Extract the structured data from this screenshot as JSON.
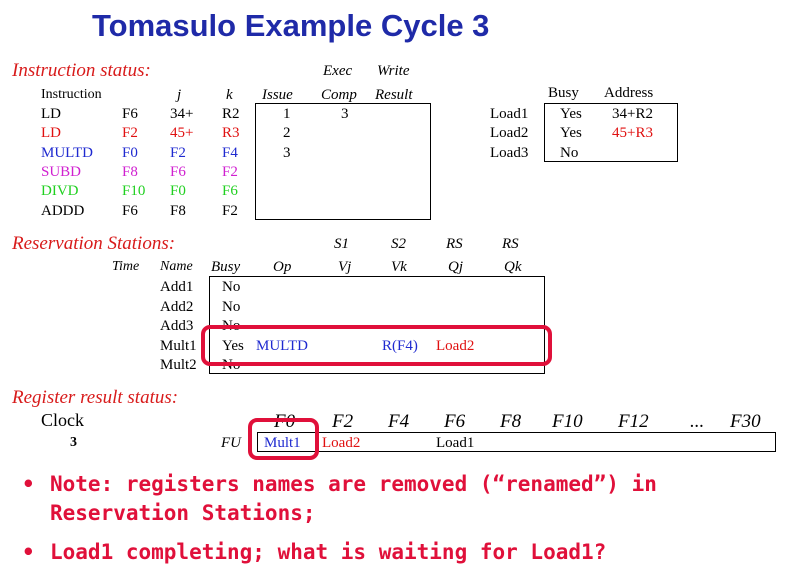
{
  "title": "Tomasulo Example Cycle 3",
  "instruction_status": {
    "label": "Instruction status:",
    "headers": {
      "instruction": "Instruction",
      "j": "j",
      "k": "k",
      "issue": "Issue",
      "exec_top": "Exec",
      "exec_bottom": "Comp",
      "write_top": "Write",
      "write_bottom": "Result"
    },
    "rows": [
      {
        "op": "LD",
        "dest": "F6",
        "j": "34+",
        "k": "R2",
        "issue": "1",
        "exec": "3",
        "write": "",
        "color": "#000000"
      },
      {
        "op": "LD",
        "dest": "F2",
        "j": "45+",
        "k": "R3",
        "issue": "2",
        "exec": "",
        "write": "",
        "color": "#e01010"
      },
      {
        "op": "MULTD",
        "dest": "F0",
        "j": "F2",
        "k": "F4",
        "issue": "3",
        "exec": "",
        "write": "",
        "color": "#1f2ad0"
      },
      {
        "op": "SUBD",
        "dest": "F8",
        "j": "F6",
        "k": "F2",
        "issue": "",
        "exec": "",
        "write": "",
        "color": "#d020d0"
      },
      {
        "op": "DIVD",
        "dest": "F10",
        "j": "F0",
        "k": "F6",
        "issue": "",
        "exec": "",
        "write": "",
        "color": "#20d020"
      },
      {
        "op": "ADDD",
        "dest": "F6",
        "j": "F8",
        "k": "F2",
        "issue": "",
        "exec": "",
        "write": "",
        "color": "#000000"
      }
    ]
  },
  "load_buffers": {
    "headers": {
      "busy": "Busy",
      "address": "Address"
    },
    "rows": [
      {
        "name": "Load1",
        "busy": "Yes",
        "address": "34+R2",
        "color": "#000000"
      },
      {
        "name": "Load2",
        "busy": "Yes",
        "address": "45+R3",
        "color": "#e01010"
      },
      {
        "name": "Load3",
        "busy": "No",
        "address": "",
        "color": "#000000"
      }
    ]
  },
  "reservation_stations": {
    "label": "Reservation Stations:",
    "headers": {
      "time": "Time",
      "name": "Name",
      "busy": "Busy",
      "op": "Op",
      "s1": "S1",
      "vj": "Vj",
      "s2": "S2",
      "vk": "Vk",
      "rs1": "RS",
      "qj": "Qj",
      "rs2": "RS",
      "qk": "Qk"
    },
    "rows": [
      {
        "name": "Add1",
        "busy": "No",
        "op": "",
        "vj": "",
        "vk": "",
        "qj": "",
        "qk": ""
      },
      {
        "name": "Add2",
        "busy": "No",
        "op": "",
        "vj": "",
        "vk": "",
        "qj": "",
        "qk": ""
      },
      {
        "name": "Add3",
        "busy": "No",
        "op": "",
        "vj": "",
        "vk": "",
        "qj": "",
        "qk": ""
      },
      {
        "name": "Mult1",
        "busy": "Yes",
        "op": "MULTD",
        "vj": "",
        "vk": "R(F4)",
        "qj": "Load2",
        "qk": ""
      },
      {
        "name": "Mult2",
        "busy": "No",
        "op": "",
        "vj": "",
        "vk": "",
        "qj": "",
        "qk": ""
      }
    ]
  },
  "register_status": {
    "label": "Register result status:",
    "clock_label": "Clock",
    "clock_value": "3",
    "fu_label": "FU",
    "registers": [
      "F0",
      "F2",
      "F4",
      "F6",
      "F8",
      "F10",
      "F12",
      "...",
      "F30"
    ],
    "values": [
      "Mult1",
      "Load2",
      "",
      "Load1",
      "",
      "",
      "",
      "",
      ""
    ]
  },
  "notes": [
    "Note: registers names are removed (“renamed”) in Reservation Stations;",
    "Load1 completing; what is waiting for Load1?"
  ],
  "notes_lines": [
    [
      "Note: registers names are removed (“renamed”) in",
      "Reservation Stations;"
    ],
    [
      "Load1 completing; what is waiting for Load1?"
    ]
  ],
  "colors": {
    "title": "#1f2aa8",
    "section": "#d81b1b",
    "highlight": "#e0103a"
  }
}
